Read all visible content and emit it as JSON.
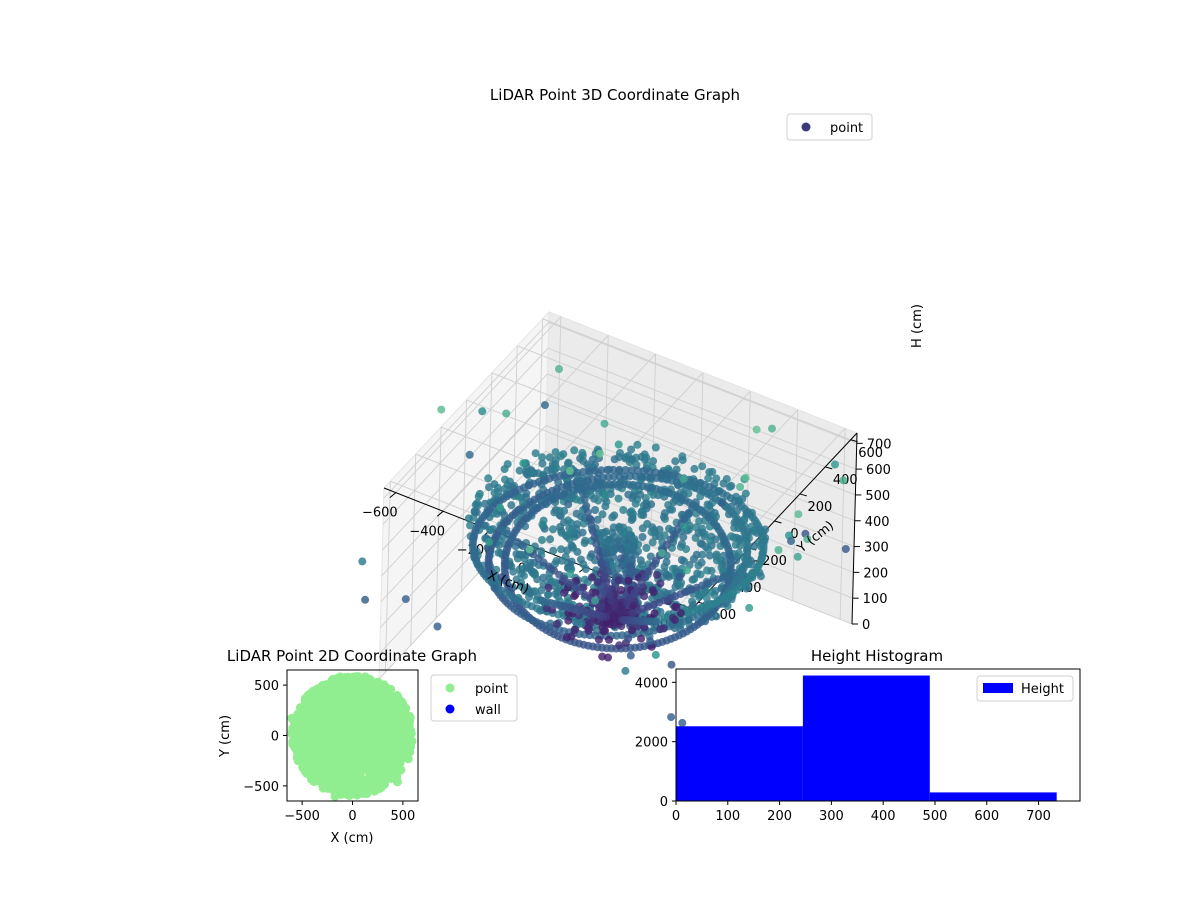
{
  "chart_data": [
    {
      "type": "scatter",
      "projection": "3d",
      "title": "LiDAR Point 3D Coordinate Graph",
      "xlabel": "X (cm)",
      "ylabel": "Y (cm)",
      "zlabel": "H (cm)",
      "xlim": [
        -650,
        650
      ],
      "ylim": [
        -650,
        650
      ],
      "zlim": [
        0,
        740
      ],
      "z_inverted": true,
      "xticks": [
        -600,
        -400,
        -200,
        0,
        200,
        400,
        600
      ],
      "yticks": [
        -600,
        -400,
        -200,
        0,
        200,
        400,
        600
      ],
      "zticks": [
        0,
        100,
        200,
        300,
        400,
        500,
        600,
        700
      ],
      "colormap": "viridis",
      "grid": true,
      "legend": {
        "position": "top-right",
        "entries": [
          "point"
        ]
      },
      "series": [
        {
          "name": "point",
          "color": "#3b3a7a"
        }
      ]
    },
    {
      "type": "scatter",
      "title": "LiDAR Point 2D Coordinate Graph",
      "xlabel": "X (cm)",
      "ylabel": "Y (cm)",
      "xlim": [
        -650,
        650
      ],
      "ylim": [
        -650,
        650
      ],
      "xticks": [
        -500,
        0,
        500
      ],
      "yticks": [
        -500,
        0,
        500
      ],
      "legend": {
        "position": "outside-right",
        "entries": [
          "point",
          "wall"
        ]
      },
      "series": [
        {
          "name": "point",
          "color": "#90ee90"
        },
        {
          "name": "wall",
          "color": "#0000ff"
        }
      ]
    },
    {
      "type": "bar",
      "title": "Height Histogram",
      "xlim": [
        0,
        780
      ],
      "ylim": [
        0,
        4450
      ],
      "xticks": [
        0,
        100,
        200,
        300,
        400,
        500,
        600,
        700
      ],
      "yticks": [
        0,
        2000,
        4000
      ],
      "legend": {
        "position": "top-right",
        "entries": [
          "Height"
        ]
      },
      "series": [
        {
          "name": "Height",
          "color": "#0000ff"
        }
      ],
      "bins": [
        {
          "start": 0,
          "end": 245,
          "count": 2520
        },
        {
          "start": 245,
          "end": 490,
          "count": 4230
        },
        {
          "start": 490,
          "end": 735,
          "count": 290
        }
      ]
    }
  ]
}
